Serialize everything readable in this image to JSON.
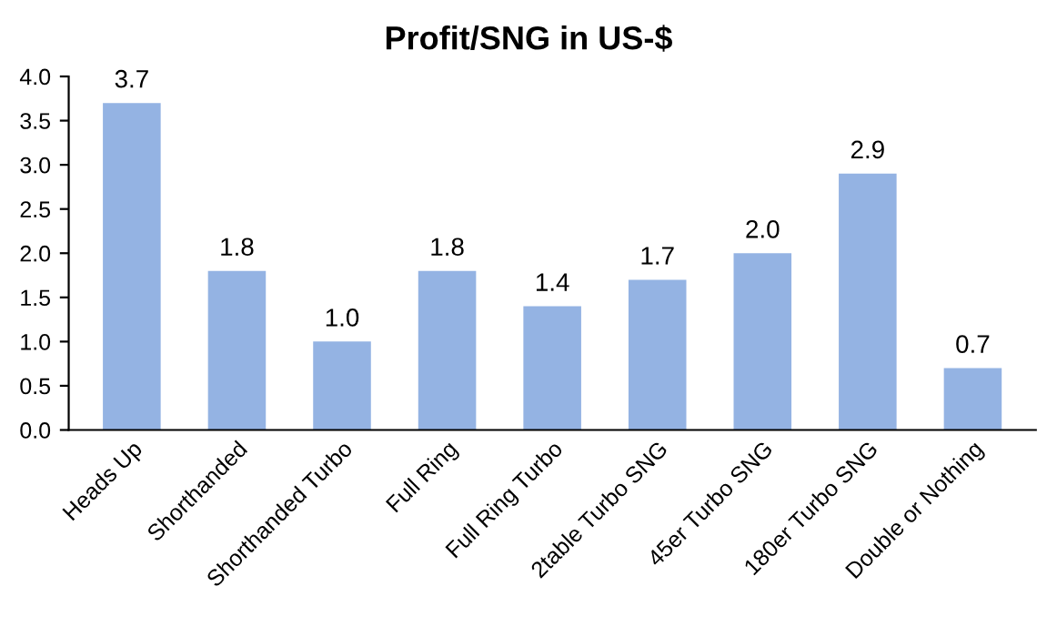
{
  "chart_data": {
    "type": "bar",
    "title": "Profit/SNG in US-$",
    "categories": [
      "Heads Up",
      "Shorthanded",
      "Shorthanded Turbo",
      "Full Ring",
      "Full Ring Turbo",
      "2table Turbo SNG",
      "45er Turbo SNG",
      "180er Turbo SNG",
      "Double or Nothing"
    ],
    "values": [
      3.7,
      1.8,
      1.0,
      1.8,
      1.4,
      1.7,
      2.0,
      2.9,
      0.7
    ],
    "color": "#94b3e3",
    "ylim": [
      0,
      4
    ],
    "yticks": [
      {
        "value": 0,
        "label": "0.0"
      },
      {
        "value": 0.5,
        "label": "0.5"
      },
      {
        "value": 1,
        "label": "1.0"
      },
      {
        "value": 1.5,
        "label": "1.5"
      },
      {
        "value": 2,
        "label": "2.0"
      },
      {
        "value": 2.5,
        "label": "2.5"
      },
      {
        "value": 3,
        "label": "3.0"
      },
      {
        "value": 3.5,
        "label": "3.5"
      },
      {
        "value": 4,
        "label": "4.0"
      }
    ],
    "value_labels": [
      "3.7",
      "1.8",
      "1.0",
      "1.8",
      "1.4",
      "1.7",
      "2.0",
      "2.9",
      "0.7"
    ],
    "grid": false,
    "legend": false
  }
}
